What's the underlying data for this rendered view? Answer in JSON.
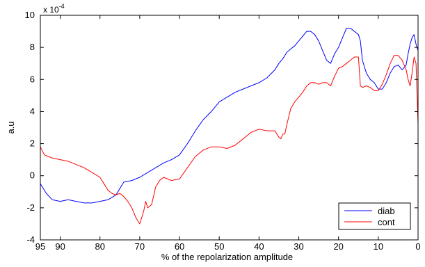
{
  "chart_data": {
    "type": "line",
    "title": "",
    "xlabel": "% of the repolarization amplitude",
    "ylabel": "a.u",
    "y_multiplier_label": "x 10",
    "y_multiplier_exponent": "-4",
    "xlim": [
      95,
      0
    ],
    "x_reversed": true,
    "ylim": [
      -4,
      10
    ],
    "x_ticks": [
      95,
      90,
      80,
      70,
      60,
      50,
      40,
      30,
      20,
      10,
      0
    ],
    "y_ticks": [
      -4,
      -2,
      0,
      2,
      4,
      6,
      8,
      10
    ],
    "grid": false,
    "legend_position": "bottom-right",
    "series": [
      {
        "name": "diab",
        "color": "#0000ff",
        "x": [
          95,
          93.5,
          92,
          90,
          88,
          86,
          84,
          82,
          80,
          78,
          76,
          75,
          74,
          72,
          70,
          68,
          66,
          64,
          62,
          60,
          58,
          56,
          54,
          52,
          50,
          48,
          46,
          44,
          42,
          40,
          38,
          36,
          35,
          34,
          33,
          32,
          31,
          30,
          29,
          28,
          27,
          26,
          25,
          24,
          23,
          22,
          21,
          20,
          19,
          18,
          17,
          16,
          15,
          14.5,
          14,
          13,
          12,
          11,
          10,
          9,
          8,
          7,
          6,
          5,
          4,
          3,
          2.5,
          2,
          1.5,
          1,
          0.5,
          0
        ],
        "values": [
          -0.5,
          -1.1,
          -1.5,
          -1.6,
          -1.5,
          -1.6,
          -1.7,
          -1.7,
          -1.6,
          -1.5,
          -1.2,
          -0.8,
          -0.4,
          -0.3,
          -0.1,
          0.2,
          0.5,
          0.8,
          1.0,
          1.3,
          2.0,
          2.8,
          3.5,
          4.0,
          4.6,
          4.9,
          5.2,
          5.4,
          5.6,
          5.8,
          6.1,
          6.6,
          7.0,
          7.3,
          7.7,
          7.9,
          8.1,
          8.4,
          8.7,
          9.0,
          9.0,
          8.8,
          8.4,
          7.8,
          7.2,
          7.0,
          7.6,
          8.0,
          8.6,
          9.2,
          9.2,
          9.0,
          8.8,
          8.4,
          7.2,
          6.4,
          6.0,
          5.8,
          5.4,
          5.4,
          5.8,
          6.4,
          6.8,
          6.9,
          6.6,
          6.9,
          7.6,
          8.2,
          8.6,
          8.8,
          8.2,
          7.8
        ]
      },
      {
        "name": "cont",
        "color": "#ff0000",
        "x": [
          95,
          94,
          93,
          92,
          90,
          88,
          86,
          84,
          82,
          80,
          79,
          78,
          77,
          76,
          75,
          74,
          73,
          72,
          71,
          70.5,
          70,
          69.5,
          69,
          68.5,
          68,
          67,
          66,
          65,
          64,
          62,
          60,
          58,
          56,
          54,
          52,
          50,
          48,
          46,
          44,
          42,
          40,
          38,
          36,
          35,
          34.5,
          34,
          33.5,
          33,
          32,
          31,
          30,
          29,
          28,
          27,
          26,
          25,
          24,
          23,
          22,
          21,
          20,
          19,
          18,
          17,
          16,
          15,
          14.5,
          14,
          13,
          12,
          11,
          10,
          9,
          8,
          7,
          6,
          5,
          4,
          3,
          2.5,
          2,
          1.5,
          1,
          0.5,
          0
        ],
        "values": [
          1.8,
          1.3,
          1.2,
          1.1,
          1.0,
          0.9,
          0.7,
          0.5,
          0.2,
          -0.1,
          -0.5,
          -0.9,
          -1.1,
          -1.2,
          -1.1,
          -1.3,
          -1.6,
          -2.0,
          -2.6,
          -2.8,
          -3.0,
          -2.6,
          -2.2,
          -1.6,
          -2.0,
          -1.8,
          -0.7,
          -0.3,
          -0.1,
          -0.3,
          -0.2,
          0.5,
          1.2,
          1.6,
          1.8,
          1.8,
          1.7,
          1.9,
          2.3,
          2.7,
          2.9,
          2.8,
          2.8,
          2.4,
          2.3,
          2.6,
          2.6,
          3.2,
          4.2,
          4.6,
          4.9,
          5.2,
          5.6,
          5.8,
          5.8,
          5.7,
          5.8,
          5.8,
          5.6,
          6.2,
          6.7,
          6.8,
          7.0,
          7.2,
          7.4,
          7.4,
          5.6,
          5.5,
          5.6,
          5.5,
          5.3,
          5.3,
          5.7,
          6.3,
          7.0,
          7.5,
          7.5,
          7.2,
          6.6,
          6.0,
          5.6,
          6.4,
          7.4,
          7.0,
          3.2
        ]
      }
    ]
  }
}
